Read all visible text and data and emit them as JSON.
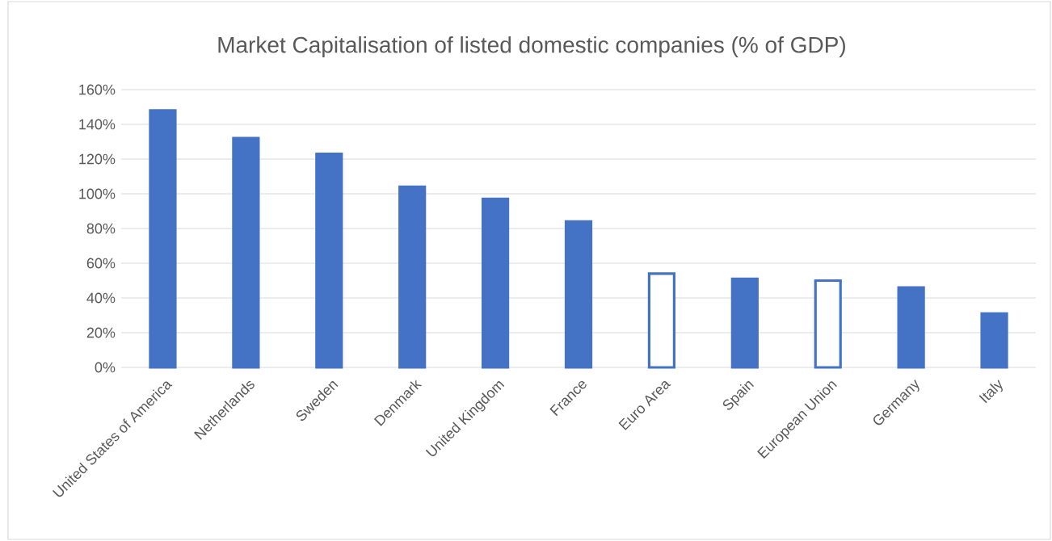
{
  "chart_data": {
    "type": "bar",
    "title": "Market Capitalisation of listed domestic companies (% of GDP)",
    "categories": [
      "United States of America",
      "Netherlands",
      "Sweden",
      "Denmark",
      "United Kingdom",
      "France",
      "Euro Area",
      "Spain",
      "European Union",
      "Germany",
      "Italy"
    ],
    "values": [
      148,
      132,
      123,
      104,
      97,
      84,
      54,
      51,
      50,
      46,
      31
    ],
    "color": "#4472c4",
    "colors": [
      "#4472c4",
      "#4472c4",
      "#4472c4",
      "#4472c4",
      "#4472c4",
      "#4472c4",
      "#ffffff",
      "#4472c4",
      "#ffffff",
      "#4472c4",
      "#4472c4"
    ],
    "ylim": [
      0,
      160
    ],
    "yticks": [
      {
        "value": 0,
        "label": "0%"
      },
      {
        "value": 20,
        "label": "20%"
      },
      {
        "value": 40,
        "label": "40%"
      },
      {
        "value": 60,
        "label": "60%"
      },
      {
        "value": 80,
        "label": "80%"
      },
      {
        "value": 100,
        "label": "100%"
      },
      {
        "value": 120,
        "label": "120%"
      },
      {
        "value": 140,
        "label": "140%"
      },
      {
        "value": 160,
        "label": "160%"
      }
    ],
    "grid": "y"
  }
}
